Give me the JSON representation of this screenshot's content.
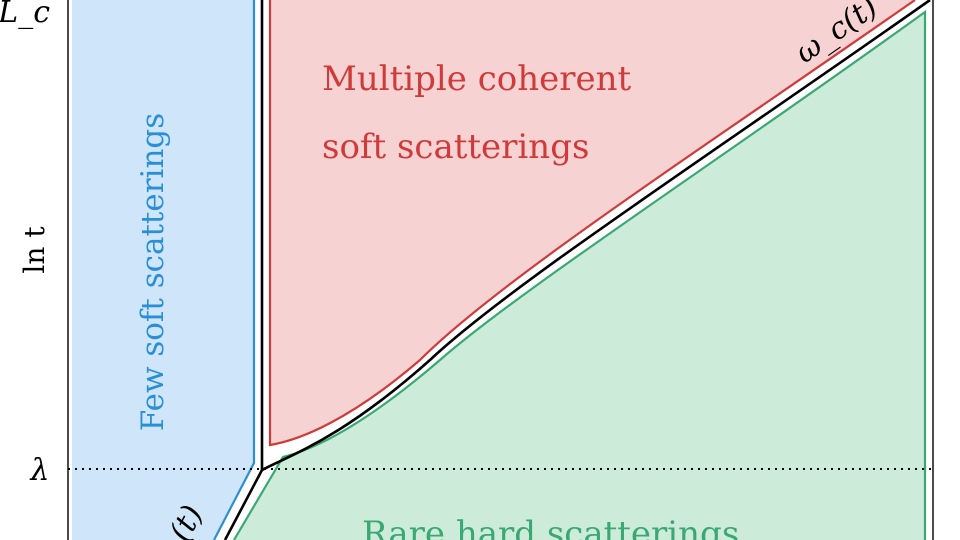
{
  "axis": {
    "y_label": "ln t",
    "y_top_tick": "L_c",
    "y_lambda_tick": "λ"
  },
  "regions": {
    "few_soft": {
      "label": "Few soft scatterings",
      "color": "#2b8fd6",
      "fill": "#cfe5fa"
    },
    "multiple_coherent": {
      "line1": "Multiple coherent",
      "line2": "soft scatterings",
      "color": "#d03a3a",
      "fill": "#f7d2d2"
    },
    "rare_hard": {
      "label": "Rare hard scatterings",
      "color": "#3aa873",
      "fill": "#cdebd9"
    }
  },
  "curves": {
    "omega_c": "ω_c(t)",
    "lower_left": "(t)"
  }
}
